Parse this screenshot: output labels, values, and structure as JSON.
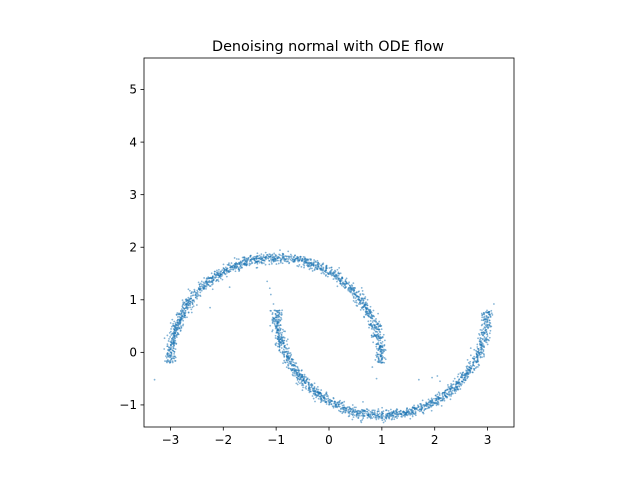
{
  "chart_data": {
    "type": "scatter",
    "title": "Denoising normal with ODE flow",
    "xlabel": "",
    "ylabel": "",
    "xlim": [
      -3.5,
      3.5
    ],
    "ylim": [
      -1.42,
      5.6
    ],
    "x_ticks": [
      -3,
      -2,
      -1,
      0,
      1,
      2,
      3
    ],
    "x_tick_labels": [
      "−3",
      "−2",
      "−1",
      "0",
      "1",
      "2",
      "3"
    ],
    "y_ticks": [
      -1,
      0,
      1,
      2,
      3,
      4,
      5
    ],
    "y_tick_labels": [
      "−1",
      "0",
      "1",
      "2",
      "3",
      "4",
      "5"
    ],
    "grid": false,
    "legend": "none",
    "series": [
      {
        "description": "upper moon arc (dense ring of samples)",
        "shape": "arc",
        "center": [
          -1.0,
          -0.2
        ],
        "radius": 2.0,
        "angle_range_deg": [
          0,
          180
        ],
        "thickness": 0.05,
        "approx_points": 1500
      },
      {
        "description": "lower moon arc (dense ring of samples)",
        "shape": "arc",
        "center": [
          1.0,
          0.8
        ],
        "radius": 2.0,
        "angle_range_deg": [
          180,
          360
        ],
        "thickness": 0.05,
        "approx_points": 1500
      },
      {
        "description": "sparse outlier samples",
        "shape": "points",
        "points": [
          [
            -3.3,
            -0.52
          ],
          [
            -2.5,
            0.9
          ],
          [
            -2.25,
            0.85
          ],
          [
            -2.2,
            1.2
          ],
          [
            -1.88,
            1.24
          ],
          [
            -1.17,
            1.35
          ],
          [
            -1.12,
            1.22
          ],
          [
            -1.1,
            1.1
          ],
          [
            -1.05,
            0.92
          ],
          [
            -2.8,
            0.5
          ],
          [
            0.82,
            -0.28
          ],
          [
            0.9,
            -0.5
          ],
          [
            1.7,
            -0.52
          ],
          [
            1.95,
            -0.48
          ],
          [
            2.1,
            -0.55
          ],
          [
            2.25,
            -0.62
          ],
          [
            2.05,
            -0.45
          ],
          [
            3.12,
            0.92
          ],
          [
            1.5,
            -1.1
          ],
          [
            0.2,
            -0.95
          ]
        ]
      }
    ],
    "colors": {
      "point": "#1f77b4"
    }
  }
}
